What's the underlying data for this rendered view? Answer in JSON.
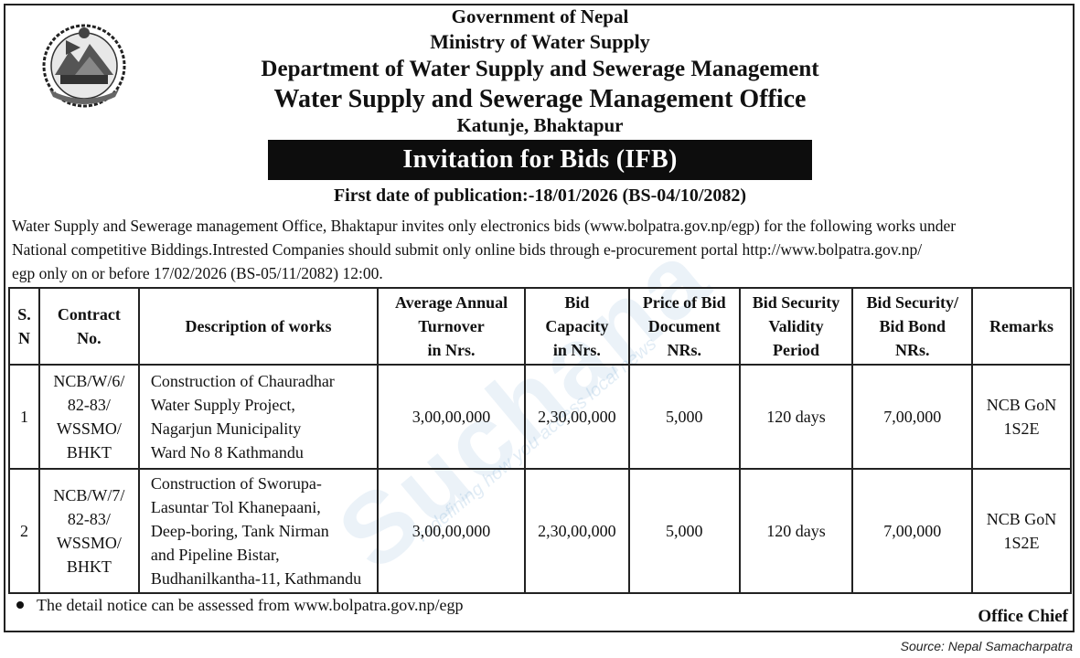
{
  "header": {
    "line1": "Government of Nepal",
    "line2": "Ministry of Water Supply",
    "line3": "Department of Water Supply and Sewerage Management",
    "line4": "Water Supply and Sewerage Management Office",
    "line5": "Katunje, Bhaktapur"
  },
  "banner": "Invitation for Bids (IFB)",
  "publication_date": "First date of publication:-18/01/2026 (BS-04/10/2082)",
  "intro": [
    "Water Supply and Sewerage management Office, Bhaktapur invites only electronics bids (www.bolpatra.gov.np/egp) for the following works under",
    "National competitive Biddings.Intrested Companies should submit only online bids through e-procurement portal   http://www.bolpatra.gov.np/",
    "egp only on or before 17/02/2026 (BS-05/11/2082) 12:00."
  ],
  "table": {
    "headers": {
      "sn": [
        "S.",
        "N"
      ],
      "contract": [
        "Contract",
        "No."
      ],
      "desc": [
        "Description of works"
      ],
      "turnover": [
        "Average Annual",
        "Turnover",
        "in Nrs."
      ],
      "capacity": [
        "Bid",
        "Capacity",
        "in Nrs."
      ],
      "price": [
        "Price of Bid",
        "Document",
        "NRs."
      ],
      "validity": [
        "Bid Security",
        "Validity",
        "Period"
      ],
      "security": [
        "Bid Security/",
        "Bid  Bond",
        "NRs."
      ],
      "remarks": [
        "Remarks"
      ]
    },
    "rows": [
      {
        "sn": "1",
        "contract": [
          "NCB/W/6/",
          "82-83/",
          "WSSMO/",
          "BHKT"
        ],
        "desc": [
          "Construction of Chauradhar",
          "Water Supply Project,",
          "Nagarjun Municipality",
          "Ward No 8 Kathmandu"
        ],
        "turnover": "3,00,00,000",
        "capacity": "2,30,00,000",
        "price": "5,000",
        "validity": "120 days",
        "security": "7,00,000",
        "remarks": [
          "NCB GoN",
          "1S2E"
        ]
      },
      {
        "sn": "2",
        "contract": [
          "NCB/W/7/",
          "82-83/",
          "WSSMO/",
          "BHKT"
        ],
        "desc": [
          "Construction of Sworupa-",
          "Lasuntar Tol Khanepaani,",
          "Deep-boring, Tank Nirman",
          "and Pipeline Bistar,",
          "Budhanilkantha-11, Kathmandu"
        ],
        "turnover": "3,00,00,000",
        "capacity": "2,30,00,000",
        "price": "5,000",
        "validity": "120 days",
        "security": "7,00,000",
        "remarks": [
          "NCB GoN",
          "1S2E"
        ]
      }
    ]
  },
  "footnote": "The detail notice can be assessed from www.bolpatra.gov.np/egp",
  "signature": "Office Chief",
  "source": "Source: Nepal Samacharpatra",
  "watermark": {
    "brand": "Suchana",
    "tagline": "redefining how you access local news"
  },
  "icons": {
    "emblem": "nepal-emblem-icon",
    "bullet": "bullet-icon"
  }
}
